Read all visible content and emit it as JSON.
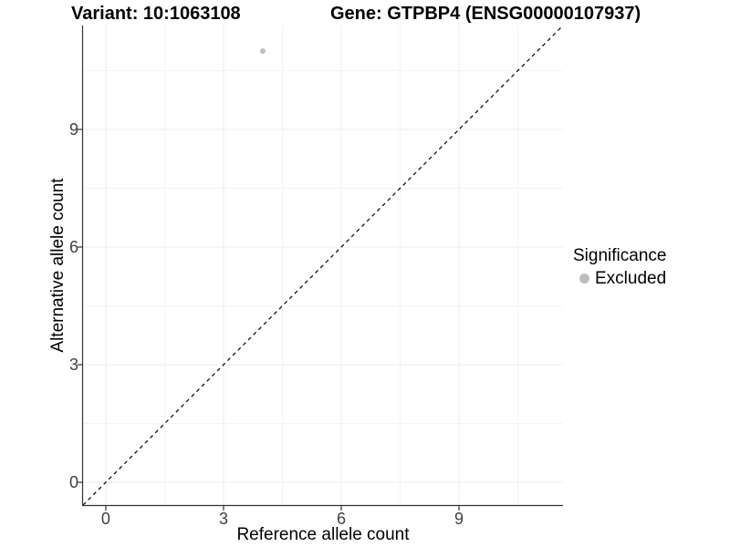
{
  "colors": {
    "background": "#ffffff",
    "axis_line": "#333333",
    "tick_mark": "#333333",
    "tick_label": "#404040",
    "grid_major": "#ececec",
    "grid_minor": "#f4f4f4",
    "reference_line": "#000000",
    "point": "#bebebe"
  },
  "chart_data": {
    "type": "scatter",
    "title_variant": "Variant: 10:1063108",
    "title_gene": "Gene: GTPBP4 (ENSG00000107937)",
    "xlabel": "Reference allele count",
    "ylabel": "Alternative allele count",
    "xlim": [
      -0.58,
      11.65
    ],
    "ylim": [
      -0.58,
      11.65
    ],
    "xticks": [
      0,
      3,
      6,
      9
    ],
    "yticks": [
      0,
      3,
      6,
      9
    ],
    "minor_ticks": [
      1.5,
      4.5,
      7.5,
      10.5
    ],
    "grid": true,
    "reference_line": {
      "type": "identity",
      "slope": 1,
      "intercept": 0,
      "style": "dashed"
    },
    "series": [
      {
        "name": "Excluded",
        "color": "#bebebe",
        "points": [
          {
            "x": 4,
            "y": 11
          }
        ]
      }
    ],
    "legend": {
      "title": "Significance",
      "position": "right",
      "items": [
        {
          "label": "Excluded",
          "color": "#bebebe"
        }
      ]
    }
  }
}
